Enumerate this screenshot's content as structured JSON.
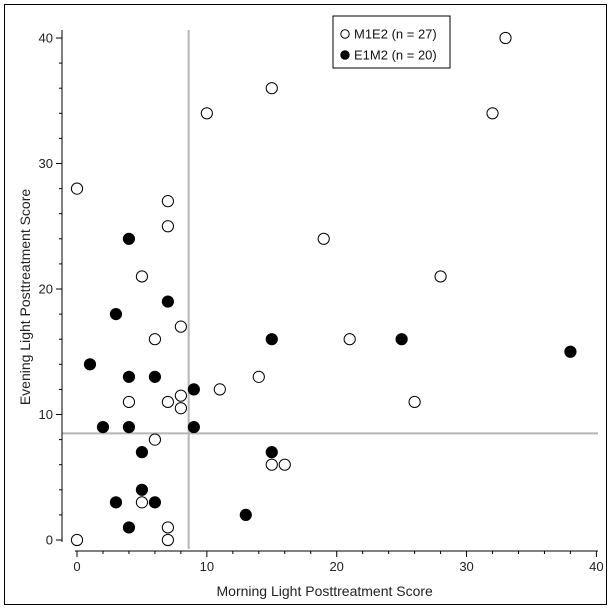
{
  "chart_data": {
    "type": "scatter",
    "xlabel": "Morning Light Posttreatment Score",
    "ylabel": "Evening Light Posttreatment Score",
    "xlim": [
      -1,
      40
    ],
    "ylim": [
      -0.5,
      41
    ],
    "xticks": [
      0,
      10,
      20,
      30,
      40
    ],
    "yticks": [
      0,
      10,
      20,
      30,
      40
    ],
    "reference_lines": {
      "x": 8.6,
      "y": 8.5,
      "color": "#b5b5b5"
    },
    "legend_position": "top-right",
    "series": [
      {
        "name": "M1E2 (n = 27)",
        "marker": "open-circle",
        "color": "#000000",
        "points": [
          [
            0,
            0
          ],
          [
            0,
            28
          ],
          [
            4,
            11
          ],
          [
            5,
            21
          ],
          [
            5,
            3
          ],
          [
            6,
            16
          ],
          [
            6,
            8
          ],
          [
            7,
            27
          ],
          [
            7,
            25
          ],
          [
            7,
            11
          ],
          [
            7,
            1
          ],
          [
            7,
            0
          ],
          [
            8,
            17
          ],
          [
            8,
            10.5
          ],
          [
            8,
            11.5
          ],
          [
            10,
            34
          ],
          [
            11,
            12
          ],
          [
            14,
            13
          ],
          [
            15,
            36
          ],
          [
            15,
            6
          ],
          [
            16,
            6
          ],
          [
            19,
            24
          ],
          [
            21,
            16
          ],
          [
            26,
            11
          ],
          [
            28,
            21
          ],
          [
            32,
            34
          ],
          [
            33,
            40
          ]
        ]
      },
      {
        "name": "E1M2 (n = 20)",
        "marker": "filled-circle",
        "color": "#000000",
        "points": [
          [
            1,
            14
          ],
          [
            2,
            9
          ],
          [
            3,
            18
          ],
          [
            3,
            3
          ],
          [
            4,
            24
          ],
          [
            4,
            13
          ],
          [
            4,
            9
          ],
          [
            4,
            1
          ],
          [
            5,
            7
          ],
          [
            5,
            4
          ],
          [
            6,
            13
          ],
          [
            6,
            3
          ],
          [
            7,
            19
          ],
          [
            9,
            12
          ],
          [
            9,
            9
          ],
          [
            13,
            2
          ],
          [
            15,
            16
          ],
          [
            15,
            7
          ],
          [
            25,
            16
          ],
          [
            38,
            15
          ]
        ]
      }
    ]
  }
}
